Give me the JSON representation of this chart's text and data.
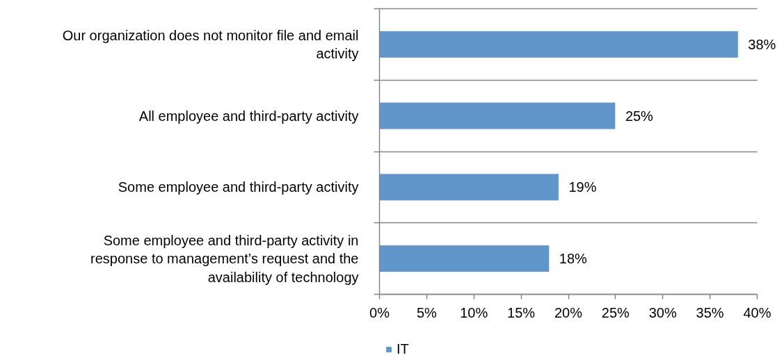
{
  "chart_data": {
    "type": "bar",
    "orientation": "horizontal",
    "categories": [
      "Our organization does not monitor file and email activity",
      "All employee and third-party activity",
      "Some employee and third-party activity",
      "Some employee and third-party activity in response to management’s request and the availability of technology"
    ],
    "series": [
      {
        "name": "IT",
        "color": "#6096c9",
        "values": [
          38,
          25,
          19,
          18
        ],
        "value_labels": [
          "38%",
          "25%",
          "19%",
          "18%"
        ]
      }
    ],
    "xlim": [
      0,
      40
    ],
    "xticks": [
      {
        "value": 0,
        "label": "0%"
      },
      {
        "value": 5,
        "label": "5%"
      },
      {
        "value": 10,
        "label": "10%"
      },
      {
        "value": 15,
        "label": "15%"
      },
      {
        "value": 20,
        "label": "20%"
      },
      {
        "value": 25,
        "label": "25%"
      },
      {
        "value": 30,
        "label": "30%"
      },
      {
        "value": 35,
        "label": "35%"
      },
      {
        "value": 40,
        "label": "40%"
      }
    ],
    "grid": "y",
    "legend": "bottom"
  }
}
